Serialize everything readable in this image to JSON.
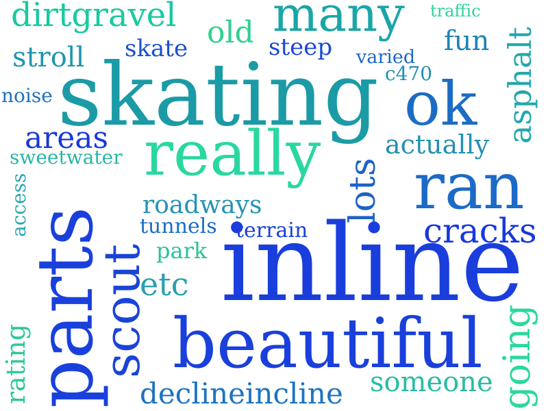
{
  "words": [
    {
      "text": "dirtgravel",
      "color": "#19c9a0"
    },
    {
      "text": "many",
      "color": "#1aa6a8"
    },
    {
      "text": "traffic",
      "color": "#2bd49a"
    },
    {
      "text": "old",
      "color": "#2fd08e"
    },
    {
      "text": "skate",
      "color": "#1a4fd0"
    },
    {
      "text": "steep",
      "color": "#1a48d6"
    },
    {
      "text": "fun",
      "color": "#1e82b6"
    },
    {
      "text": "stroll",
      "color": "#2096b0"
    },
    {
      "text": "varied",
      "color": "#1c68c4"
    },
    {
      "text": "c470",
      "color": "#2090b4"
    },
    {
      "text": "noise",
      "color": "#1e72c0"
    },
    {
      "text": "skating",
      "color": "#1b9ba6"
    },
    {
      "text": "ok",
      "color": "#1c6cc4"
    },
    {
      "text": "asphalt",
      "color": "#22a8ac"
    },
    {
      "text": "areas",
      "color": "#1838d8"
    },
    {
      "text": "actually",
      "color": "#2490b0"
    },
    {
      "text": "sweetwater",
      "color": "#28b6a4"
    },
    {
      "text": "really",
      "color": "#2ad7a0"
    },
    {
      "text": "ran",
      "color": "#1c6ac8"
    },
    {
      "text": "access",
      "color": "#2aa6b0"
    },
    {
      "text": "parts",
      "color": "#1a40dc"
    },
    {
      "text": "scout",
      "color": "#1a44d8"
    },
    {
      "text": "roadways",
      "color": "#2592b4"
    },
    {
      "text": "lots",
      "color": "#1c62c8"
    },
    {
      "text": "tunnels",
      "color": "#1c6cc4"
    },
    {
      "text": "terrain",
      "color": "#1840d8"
    },
    {
      "text": "cracks",
      "color": "#1838dc"
    },
    {
      "text": "park",
      "color": "#2ac29c"
    },
    {
      "text": "inline",
      "color": "#1a3edc"
    },
    {
      "text": "etc",
      "color": "#2aa0ac"
    },
    {
      "text": "rating",
      "color": "#2ec89c"
    },
    {
      "text": "beautiful",
      "color": "#1a40dc"
    },
    {
      "text": "going",
      "color": "#2cd89c"
    },
    {
      "text": "someone",
      "color": "#28bca4"
    },
    {
      "text": "declineincline",
      "color": "#1c74c0"
    }
  ]
}
